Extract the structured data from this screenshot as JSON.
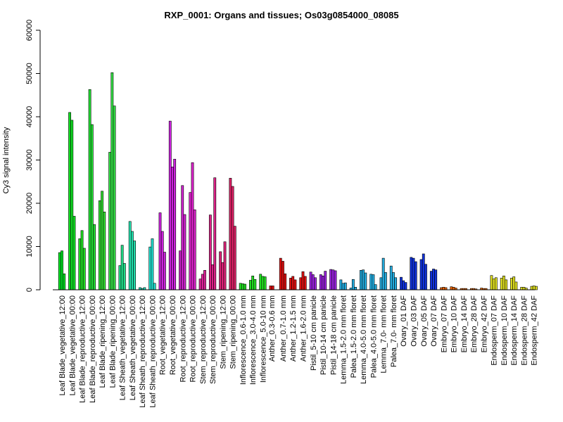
{
  "chart_data": {
    "type": "bar",
    "title": "RXP_0001: Organs and tissues; Os03g0854000_08085",
    "xlabel": "",
    "ylabel": "Cy3 signal intensity",
    "ylim": [
      0,
      60000
    ],
    "yticks": [
      0,
      10000,
      20000,
      30000,
      40000,
      50000,
      60000
    ],
    "grid": false,
    "legend": "none",
    "groups": [
      {
        "label": "Leaf Blade_vegetative_12:00",
        "color": "#00dd22",
        "values": [
          8600,
          9000,
          3700
        ]
      },
      {
        "label": "Leaf Blade_vegetative_00:00",
        "color": "#11dd22",
        "values": [
          41000,
          39200,
          17000
        ]
      },
      {
        "label": "Leaf Blade_reproductive_12:00",
        "color": "#22dd22",
        "values": [
          11800,
          13700,
          9600
        ]
      },
      {
        "label": "Leaf Blade_reproductive_00:00",
        "color": "#22dd33",
        "values": [
          46300,
          38200,
          15100
        ]
      },
      {
        "label": "Leaf Blade_ripening_12:00",
        "color": "#33dd33",
        "values": [
          20600,
          22800,
          18000
        ]
      },
      {
        "label": "Leaf Blade_ripening_00:00",
        "color": "#33dd44",
        "values": [
          31800,
          50200,
          42500
        ]
      },
      {
        "label": "Leaf Sheath_vegetative_12:00",
        "color": "#22dd88",
        "values": [
          5600,
          10300,
          6100
        ]
      },
      {
        "label": "Leaf Sheath_vegetative_00:00",
        "color": "#22ddaa",
        "values": [
          15800,
          13500,
          11300
        ]
      },
      {
        "label": "Leaf Sheath_reproductive_12:00",
        "color": "#22ddbb",
        "values": [
          500,
          300,
          500
        ]
      },
      {
        "label": "Leaf Sheath_reproductive_00:00",
        "color": "#22ddcc",
        "values": [
          9900,
          11800,
          1500
        ]
      },
      {
        "label": "Root_vegetative_12:00",
        "color": "#cc22dd",
        "values": [
          17800,
          13500,
          8700
        ]
      },
      {
        "label": "Root_vegetative_00:00",
        "color": "#cc22dd",
        "values": [
          39000,
          28400,
          30200
        ]
      },
      {
        "label": "Root_reproductive_12:00",
        "color": "#cc22cc",
        "values": [
          9000,
          24100,
          17400
        ]
      },
      {
        "label": "Root_reproductive_00:00",
        "color": "#dd22cc",
        "values": [
          22500,
          29400,
          18500
        ]
      },
      {
        "label": "Stem_reproductive_12:00",
        "color": "#dd2299",
        "values": [
          2500,
          3600,
          4500
        ]
      },
      {
        "label": "Stem_reproductive_00:00",
        "color": "#dd2288",
        "values": [
          17300,
          5800,
          25900
        ]
      },
      {
        "label": "Stem_ripening_12:00",
        "color": "#dd2277",
        "values": [
          8800,
          6300,
          11100
        ]
      },
      {
        "label": "Stem_ripening_00:00",
        "color": "#dd2266",
        "values": [
          25800,
          23900,
          14700
        ]
      },
      {
        "label": "Inflorescence_0.6-1.0 mm",
        "color": "#22dd22",
        "values": [
          1500,
          1400,
          1300
        ]
      },
      {
        "label": "Inflorescence_3.0-4.0 mm",
        "color": "#22dd22",
        "values": [
          2200,
          3200,
          2400
        ]
      },
      {
        "label": "Inflorescence_5.0-10 mm",
        "color": "#22dd22",
        "values": [
          3600,
          3100,
          3000
        ]
      },
      {
        "label": "Anther_0.3-0.6 mm",
        "color": "#dd1111",
        "values": [
          900,
          900
        ]
      },
      {
        "label": "Anther_0.7-1.0 mm",
        "color": "#dd1111",
        "values": [
          7300,
          6600,
          3700
        ]
      },
      {
        "label": "Anther_1.2-1.5 mm",
        "color": "#dd1111",
        "values": [
          2700,
          3100,
          2300
        ]
      },
      {
        "label": "Anther_1.6-2.0 mm",
        "color": "#dd1111",
        "values": [
          2800,
          4200,
          3100
        ]
      },
      {
        "label": "Pistil_5-10 cm panicle",
        "color": "#9922dd",
        "values": [
          4100,
          3500,
          2800
        ]
      },
      {
        "label": "Pistil_10-14 cm panicle",
        "color": "#9922dd",
        "values": [
          3500,
          3200,
          4300
        ]
      },
      {
        "label": "Pistil_14-18 cm panicle",
        "color": "#9922dd",
        "values": [
          4700,
          4600,
          4400
        ]
      },
      {
        "label": "Lemma_1.5-2.0 mm floret",
        "color": "#22aadd",
        "values": [
          2300,
          1500,
          1600
        ]
      },
      {
        "label": "Palea_1.5-2.0 mm floret",
        "color": "#22aadd",
        "values": [
          400,
          2400,
          600
        ]
      },
      {
        "label": "Lemma_4.0-5.0 mm floret",
        "color": "#22aadd",
        "values": [
          4500,
          4600,
          3900
        ]
      },
      {
        "label": "Palea_4.0-5.0 mm floret",
        "color": "#22aadd",
        "values": [
          3600,
          3500,
          1200
        ]
      },
      {
        "label": "Lemma_7.0- mm floret",
        "color": "#22aadd",
        "values": [
          2800,
          7300,
          4000
        ]
      },
      {
        "label": "Palea_7.0- mm floret",
        "color": "#22aadd",
        "values": [
          5500,
          4000,
          2800
        ]
      },
      {
        "label": "Ovary_01 DAF",
        "color": "#1133dd",
        "values": [
          2900,
          2100,
          1700
        ]
      },
      {
        "label": "Ovary_03 DAF",
        "color": "#1133dd",
        "values": [
          7500,
          7300,
          6500
        ]
      },
      {
        "label": "Ovary_05 DAF",
        "color": "#1133dd",
        "values": [
          7000,
          8300,
          5900
        ]
      },
      {
        "label": "Ovary_07 DAF",
        "color": "#1133dd",
        "values": [
          4300,
          4800,
          4600
        ]
      },
      {
        "label": "Embryo_07 DAF",
        "color": "#ee6600",
        "values": [
          500,
          600,
          500
        ]
      },
      {
        "label": "Embryo_10 DAF",
        "color": "#ee6600",
        "values": [
          700,
          600,
          400
        ]
      },
      {
        "label": "Embryo_14 DAF",
        "color": "#ee6600",
        "values": [
          300,
          300,
          300
        ]
      },
      {
        "label": "Embryo_28 DAF",
        "color": "#ee6600",
        "values": [
          300,
          300,
          200
        ]
      },
      {
        "label": "Embryo_42 DAF",
        "color": "#ee6600",
        "values": [
          400,
          300,
          300
        ]
      },
      {
        "label": "Endosperm_07 DAF",
        "color": "#dddd22",
        "values": [
          3300,
          2500,
          2800
        ]
      },
      {
        "label": "Endosperm_10 DAF",
        "color": "#dddd22",
        "values": [
          2700,
          3200,
          2300
        ]
      },
      {
        "label": "Endosperm_14 DAF",
        "color": "#dddd22",
        "values": [
          2700,
          3000,
          1800
        ]
      },
      {
        "label": "Endosperm_28 DAF",
        "color": "#dddd22",
        "values": [
          600,
          600,
          400
        ]
      },
      {
        "label": "Endosperm_42 DAF",
        "color": "#dddd22",
        "values": [
          800,
          900,
          800
        ]
      }
    ]
  }
}
